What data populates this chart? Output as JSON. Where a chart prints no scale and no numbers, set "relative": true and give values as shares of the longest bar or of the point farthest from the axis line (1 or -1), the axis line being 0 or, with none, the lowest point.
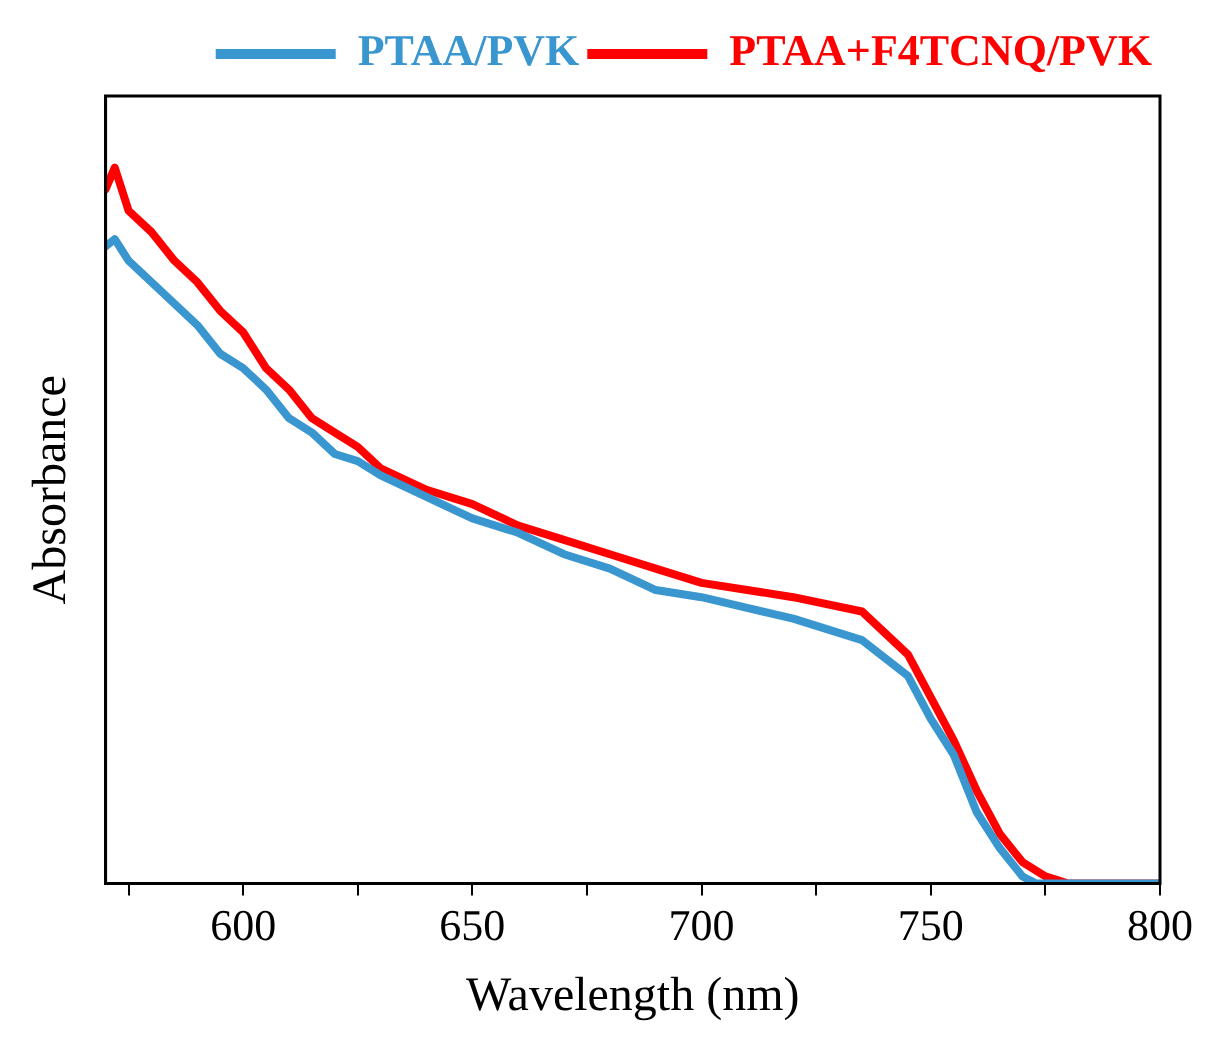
{
  "chart_data": {
    "type": "line",
    "xlabel": "Wavelength (nm)",
    "ylabel": "Absorbance",
    "relative": true,
    "xlim": [
      570,
      800
    ],
    "xticks": [
      {
        "value": 575,
        "label": null
      },
      600,
      {
        "value": 625,
        "label": null
      },
      650,
      {
        "value": 675,
        "label": null
      },
      700,
      {
        "value": 725,
        "label": null
      },
      750,
      {
        "value": 775,
        "label": null
      },
      800
    ],
    "legend": "top right",
    "marker": "none",
    "line_style": "solid",
    "series": [
      {
        "name": "PTAA/PVK",
        "color": "#3a96cf",
        "x": [
          570,
          572,
          575,
          580,
          585,
          590,
          595,
          600,
          605,
          610,
          615,
          620,
          625,
          630,
          640,
          650,
          660,
          670,
          680,
          690,
          700,
          720,
          735,
          745,
          750,
          755,
          760,
          765,
          770,
          773,
          800
        ],
        "values": [
          0.89,
          0.9,
          0.87,
          0.84,
          0.81,
          0.78,
          0.74,
          0.72,
          0.69,
          0.65,
          0.63,
          0.6,
          0.59,
          0.57,
          0.54,
          0.51,
          0.49,
          0.46,
          0.44,
          0.41,
          0.4,
          0.37,
          0.34,
          0.29,
          0.23,
          0.18,
          0.1,
          0.05,
          0.01,
          0,
          0
        ]
      },
      {
        "name": "PTAA+F4TCNQ/PVK",
        "color": "#ff0000",
        "x": [
          570,
          572,
          575,
          580,
          585,
          590,
          595,
          600,
          605,
          610,
          615,
          620,
          625,
          630,
          640,
          650,
          660,
          670,
          680,
          690,
          700,
          720,
          735,
          745,
          750,
          755,
          760,
          765,
          770,
          775,
          780,
          800
        ],
        "values": [
          0.97,
          1,
          0.94,
          0.91,
          0.87,
          0.84,
          0.8,
          0.77,
          0.72,
          0.69,
          0.65,
          0.63,
          0.61,
          0.58,
          0.55,
          0.53,
          0.5,
          0.48,
          0.46,
          0.44,
          0.42,
          0.4,
          0.38,
          0.32,
          0.26,
          0.2,
          0.13,
          0.07,
          0.03,
          0.01,
          0,
          0
        ]
      }
    ]
  }
}
